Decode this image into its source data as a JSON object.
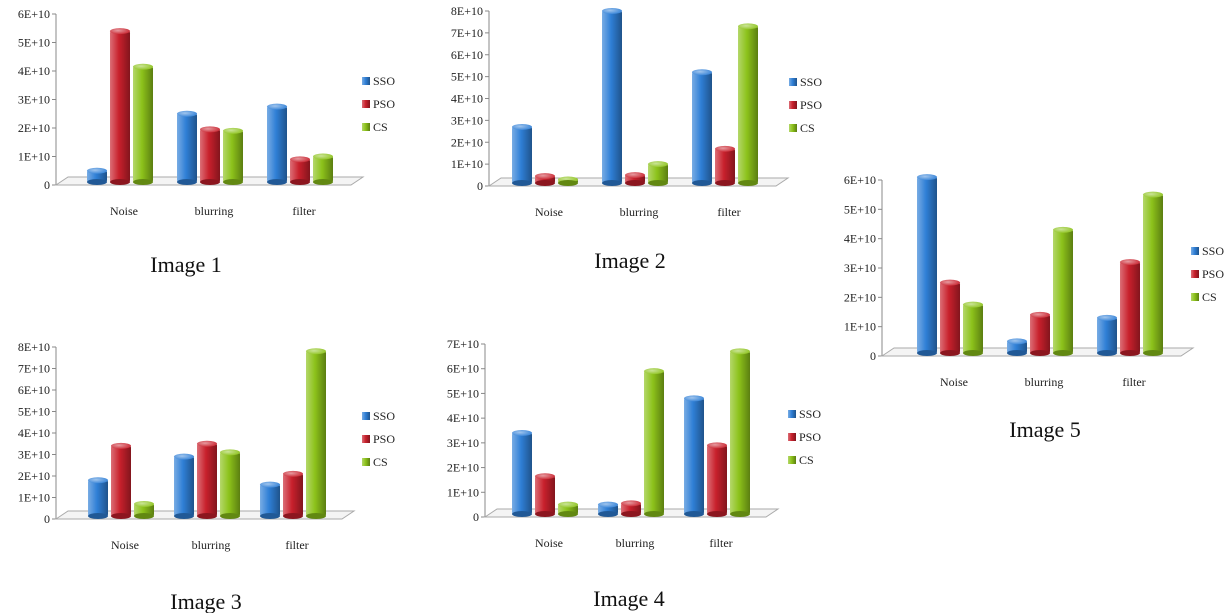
{
  "colors": {
    "SSO": "#2f7fd6",
    "PSO": "#c8202c",
    "CS": "#8cc21a"
  },
  "chart_data": [
    {
      "type": "bar",
      "title": "Image 1",
      "categories": [
        "Noise",
        "blurring",
        "filter"
      ],
      "y_tick_labels": [
        "0",
        "1E+10",
        "2E+10",
        "3E+10",
        "4E+10",
        "5E+10",
        "6E+10"
      ],
      "ylim": [
        0,
        60000000000
      ],
      "legend_position": "right",
      "series": [
        {
          "name": "SSO",
          "values": [
            5000000000,
            25000000000,
            27500000000
          ]
        },
        {
          "name": "PSO",
          "values": [
            54000000000,
            19500000000,
            9000000000
          ]
        },
        {
          "name": "CS",
          "values": [
            41500000000,
            19000000000,
            10000000000
          ]
        }
      ]
    },
    {
      "type": "bar",
      "title": "Image 2",
      "categories": [
        "Noise",
        "blurring",
        "filter"
      ],
      "y_tick_labels": [
        "0",
        "1E+10",
        "2E+10",
        "3E+10",
        "4E+10",
        "5E+10",
        "6E+10",
        "7E+10",
        "8E+10"
      ],
      "ylim": [
        0,
        80000000000
      ],
      "legend_position": "right",
      "series": [
        {
          "name": "SSO",
          "values": [
            27000000000,
            80000000000,
            52000000000
          ]
        },
        {
          "name": "PSO",
          "values": [
            4500000000,
            5000000000,
            17000000000
          ]
        },
        {
          "name": "CS",
          "values": [
            3000000000,
            10000000000,
            73000000000
          ]
        }
      ]
    },
    {
      "type": "bar",
      "title": "Image 3",
      "categories": [
        "Noise",
        "blurring",
        "filter"
      ],
      "y_tick_labels": [
        "0",
        "1E+10",
        "2E+10",
        "3E+10",
        "4E+10",
        "5E+10",
        "6E+10",
        "7E+10",
        "8E+10"
      ],
      "ylim": [
        0,
        80000000000
      ],
      "legend_position": "right",
      "series": [
        {
          "name": "SSO",
          "values": [
            18000000000,
            29000000000,
            16000000000
          ]
        },
        {
          "name": "PSO",
          "values": [
            34000000000,
            35000000000,
            21000000000
          ]
        },
        {
          "name": "CS",
          "values": [
            7000000000,
            31000000000,
            78000000000
          ]
        }
      ]
    },
    {
      "type": "bar",
      "title": "Image 4",
      "categories": [
        "Noise",
        "blurring",
        "filter"
      ],
      "y_tick_labels": [
        "0",
        "1E+10",
        "2E+10",
        "3E+10",
        "4E+10",
        "5E+10",
        "6E+10",
        "7E+10"
      ],
      "ylim": [
        0,
        70000000000
      ],
      "legend_position": "right",
      "series": [
        {
          "name": "SSO",
          "values": [
            34000000000,
            5000000000,
            48000000000
          ]
        },
        {
          "name": "PSO",
          "values": [
            16500000000,
            5500000000,
            29000000000
          ]
        },
        {
          "name": "CS",
          "values": [
            5000000000,
            59000000000,
            67000000000
          ]
        }
      ]
    },
    {
      "type": "bar",
      "title": "Image 5",
      "categories": [
        "Noise",
        "blurring",
        "filter"
      ],
      "y_tick_labels": [
        "0",
        "1E+10",
        "2E+10",
        "3E+10",
        "4E+10",
        "5E+10",
        "6E+10"
      ],
      "ylim": [
        0,
        60000000000
      ],
      "legend_position": "right",
      "series": [
        {
          "name": "SSO",
          "values": [
            61000000000,
            5000000000,
            13000000000
          ]
        },
        {
          "name": "PSO",
          "values": [
            25000000000,
            14000000000,
            32000000000
          ]
        },
        {
          "name": "CS",
          "values": [
            17500000000,
            43000000000,
            55000000000
          ]
        }
      ]
    }
  ]
}
